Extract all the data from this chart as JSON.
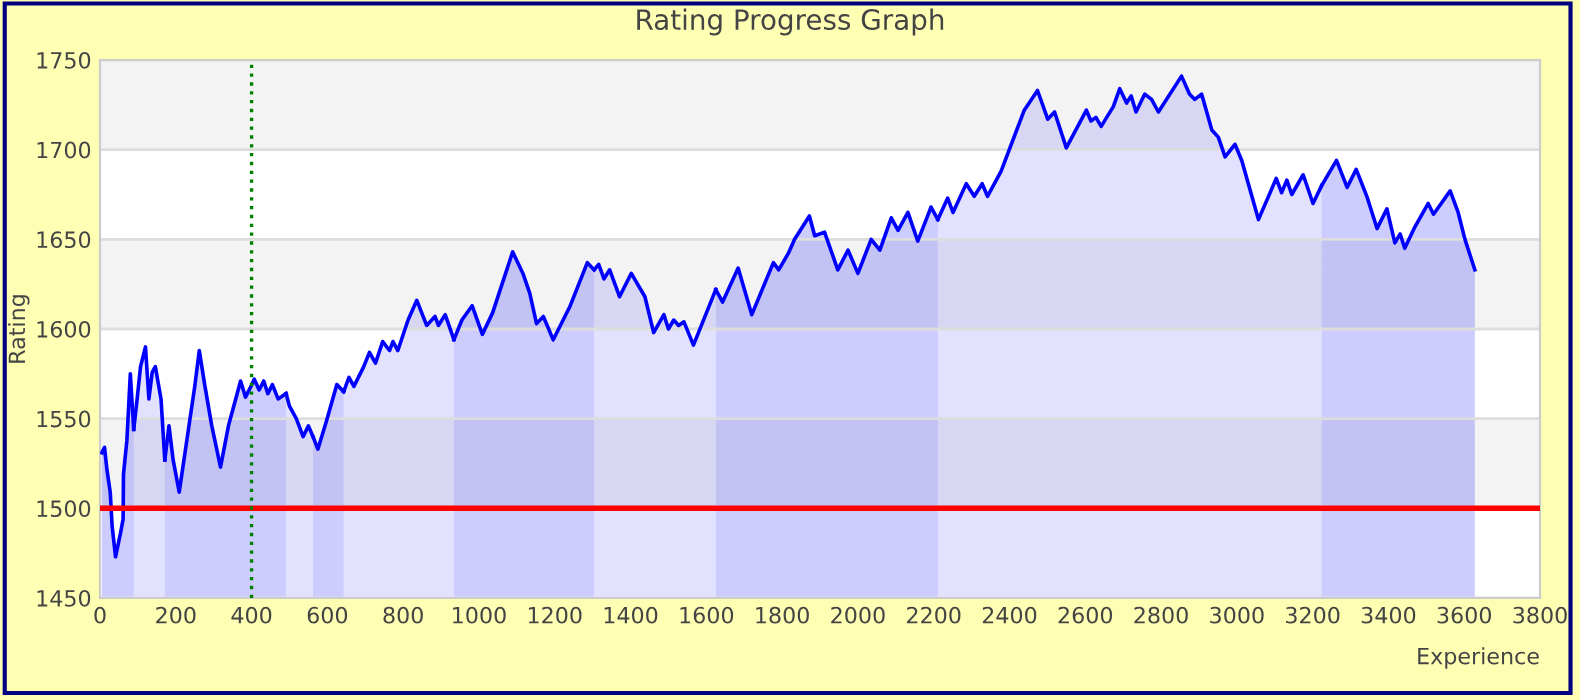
{
  "chart_data": {
    "type": "area",
    "title": "Rating Progress Graph",
    "xlabel": "Experience",
    "ylabel": "Rating",
    "xlim": [
      0,
      3800
    ],
    "xticks": [
      0,
      200,
      400,
      600,
      800,
      1000,
      1200,
      1400,
      1600,
      1800,
      2000,
      2200,
      2400,
      2600,
      2800,
      3000,
      3200,
      3400,
      3600,
      3800
    ],
    "ylim": [
      1450,
      1750
    ],
    "yticks": [
      1450,
      1500,
      1550,
      1600,
      1650,
      1700,
      1750
    ],
    "grid": "y",
    "marker": "none",
    "series": [
      {
        "color": "#0000ff",
        "x": [
          5,
          12,
          18,
          27,
          32,
          41,
          54,
          61,
          62,
          71,
          80,
          89
        ],
        "values": [
          1531,
          1534,
          1522,
          1509,
          1490,
          1473,
          1486,
          1494,
          1519,
          1538,
          1575,
          1544
        ]
      },
      {
        "color": "#0000ff",
        "x": [
          89,
          98,
          107,
          120,
          129,
          138,
          146,
          161,
          171
        ],
        "values": [
          1544,
          1561,
          1579,
          1590,
          1561,
          1576,
          1579,
          1561,
          1527
        ]
      },
      {
        "color": "#0000ff",
        "x": [
          171,
          182,
          193,
          209,
          232,
          250,
          262,
          277,
          295,
          318,
          339,
          371,
          384,
          396,
          407,
          420,
          432,
          443,
          455,
          470,
          491
        ],
        "values": [
          1527,
          1546,
          1527,
          1509,
          1542,
          1568,
          1588,
          1568,
          1546,
          1523,
          1546,
          1571,
          1562,
          1567,
          1572,
          1566,
          1571,
          1564,
          1569,
          1561,
          1564
        ]
      },
      {
        "color": "#0000ff",
        "x": [
          491,
          500,
          518,
          536,
          550,
          562
        ],
        "values": [
          1564,
          1557,
          1550,
          1540,
          1546,
          1540
        ]
      },
      {
        "color": "#0000ff",
        "x": [
          562,
          575,
          598,
          625,
          643
        ],
        "values": [
          1540,
          1533,
          1549,
          1569,
          1565
        ]
      },
      {
        "color": "#0000ff",
        "x": [
          643,
          657,
          670,
          696,
          711,
          727,
          746,
          764,
          773,
          786,
          813,
          836,
          862,
          884,
          893,
          911,
          934
        ],
        "values": [
          1565,
          1573,
          1568,
          1579,
          1587,
          1581,
          1593,
          1588,
          1593,
          1588,
          1605,
          1616,
          1602,
          1607,
          1602,
          1608,
          1594
        ]
      },
      {
        "color": "#0000ff",
        "x": [
          934,
          955,
          982,
          1009,
          1036,
          1089,
          1116,
          1134,
          1152,
          1170,
          1196,
          1241,
          1286,
          1304
        ],
        "values": [
          1594,
          1605,
          1613,
          1597,
          1609,
          1643,
          1631,
          1620,
          1603,
          1607,
          1594,
          1613,
          1637,
          1633
        ]
      },
      {
        "color": "#0000ff",
        "x": [
          1304,
          1316,
          1330,
          1345,
          1371,
          1402,
          1438,
          1461,
          1488,
          1500,
          1514,
          1527,
          1541,
          1566,
          1625
        ],
        "values": [
          1633,
          1636,
          1628,
          1633,
          1618,
          1631,
          1618,
          1598,
          1608,
          1600,
          1605,
          1602,
          1604,
          1591,
          1622
        ]
      },
      {
        "color": "#0000ff",
        "x": [
          1625,
          1643,
          1684,
          1720,
          1777,
          1791,
          1816,
          1833,
          1872,
          1886,
          1912,
          1947,
          1974,
          2000,
          2035,
          2058,
          2088,
          2106,
          2132,
          2158,
          2193,
          2211
        ],
        "values": [
          1622,
          1615,
          1634,
          1608,
          1637,
          1633,
          1642,
          1650,
          1663,
          1652,
          1654,
          1633,
          1644,
          1631,
          1650,
          1644,
          1662,
          1655,
          1665,
          1649,
          1668,
          1661
        ]
      },
      {
        "color": "#0000ff",
        "x": [
          2211,
          2237,
          2251,
          2286,
          2307,
          2328,
          2342,
          2378,
          2439,
          2474,
          2501,
          2519,
          2550,
          2603,
          2615,
          2628,
          2642,
          2674,
          2691,
          2709,
          2721,
          2734,
          2757,
          2775,
          2793,
          2854,
          2875,
          2889,
          2907,
          2934,
          2951,
          2969,
          2995,
          3013,
          3057,
          3104,
          3118,
          3132,
          3145,
          3175,
          3201,
          3224
        ],
        "values": [
          1661,
          1673,
          1665,
          1681,
          1674,
          1681,
          1674,
          1688,
          1722,
          1733,
          1717,
          1721,
          1701,
          1722,
          1716,
          1718,
          1713,
          1724,
          1734,
          1726,
          1730,
          1721,
          1731,
          1728,
          1721,
          1741,
          1731,
          1728,
          1731,
          1711,
          1707,
          1696,
          1703,
          1694,
          1661,
          1684,
          1676,
          1683,
          1675,
          1686,
          1670,
          1680
        ]
      },
      {
        "color": "#0000ff",
        "x": [
          3224,
          3263,
          3291,
          3315,
          3343,
          3370,
          3396,
          3417,
          3431,
          3443,
          3470,
          3505,
          3519,
          3563,
          3584,
          3602,
          3628
        ],
        "values": [
          1680,
          1694,
          1679,
          1689,
          1674,
          1656,
          1667,
          1648,
          1653,
          1645,
          1657,
          1670,
          1664,
          1677,
          1665,
          1650,
          1633
        ]
      }
    ],
    "ref_lines": [
      {
        "axis": "y",
        "value": 1500,
        "color": "#ff0000",
        "line_style": "solid"
      },
      {
        "axis": "x",
        "value": 400,
        "color": "#008000",
        "line_style": "dotted"
      }
    ]
  }
}
